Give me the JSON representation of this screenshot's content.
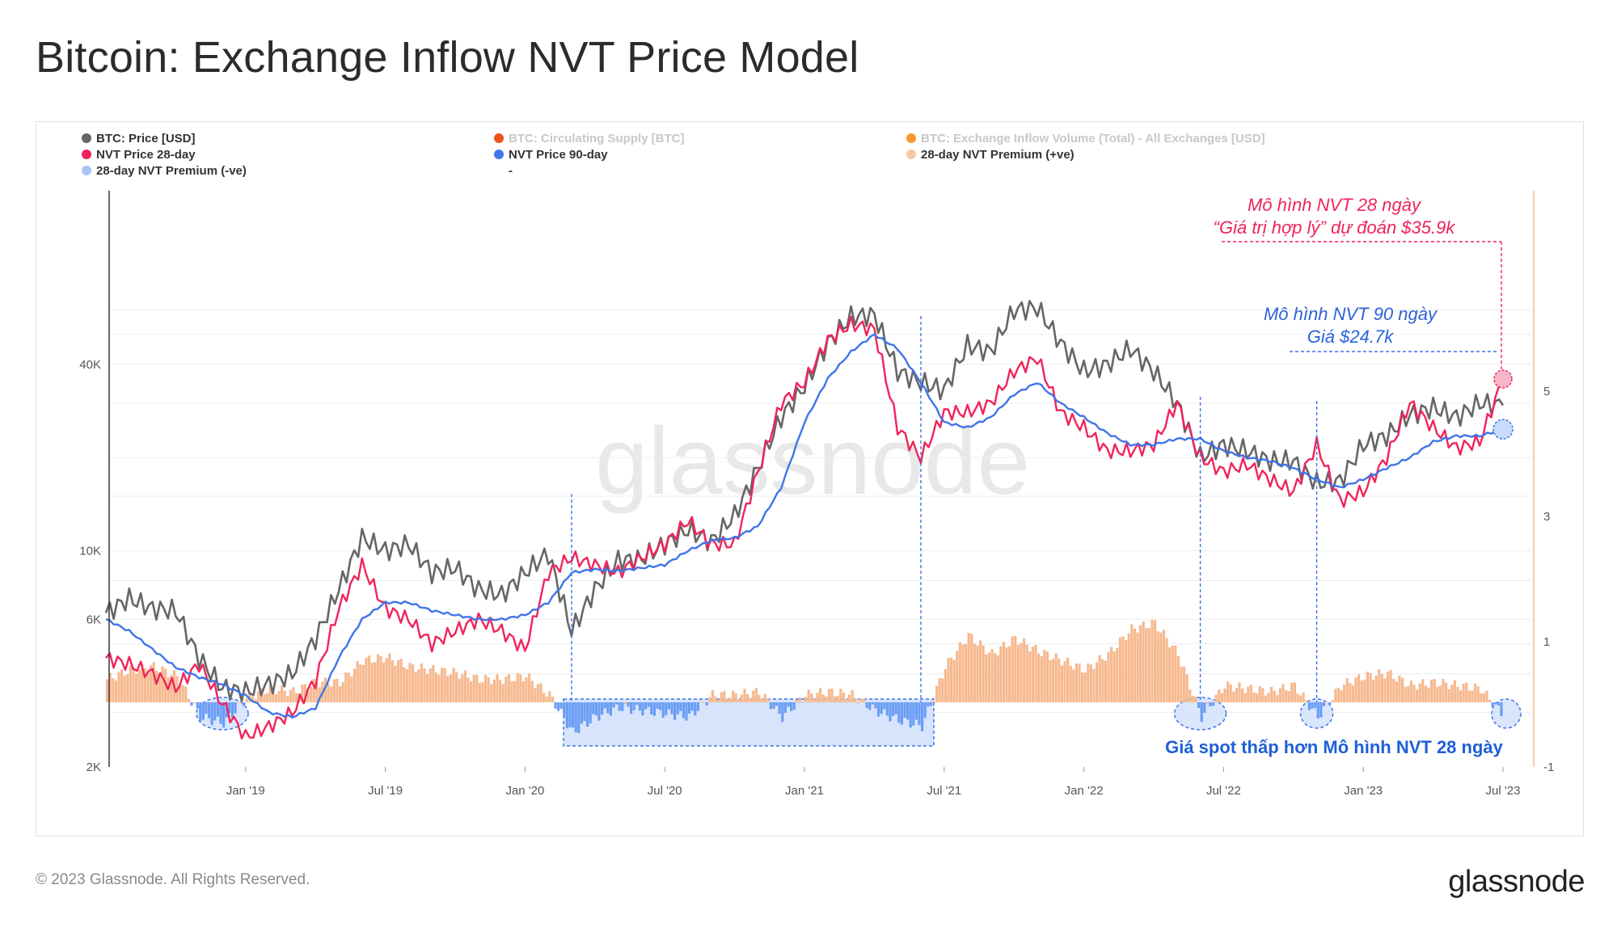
{
  "page": {
    "title": "Bitcoin: Exchange Inflow NVT Price Model",
    "copyright": "© 2023 Glassnode. All Rights Reserved.",
    "brand": "glassnode",
    "watermark": "glassnode"
  },
  "colors": {
    "price": "#666666",
    "nvt28": "#f0245a",
    "nvt90": "#3f74ea",
    "premium_pos": "#f6b98f",
    "premium_neg": "#6b9df5",
    "supply": "#f0501c",
    "inflow": "#f59a2a",
    "neg_highlight": "#c9dbfb",
    "annot_red": "#f0245a",
    "annot_blue": "#2c63d8"
  },
  "legend": [
    {
      "label": "BTC: Price [USD]",
      "color": "#666666",
      "faded": false
    },
    {
      "label": "BTC: Circulating Supply [BTC]",
      "color": "#f0501c",
      "faded": true
    },
    {
      "label": "BTC: Exchange Inflow Volume (Total) - All Exchanges [USD]",
      "color": "#f59a2a",
      "faded": true
    },
    {
      "label": "NVT Price 28-day",
      "color": "#f0245a",
      "faded": false
    },
    {
      "label": "NVT Price 90-day",
      "color": "#3f74ea",
      "faded": false
    },
    {
      "label": "28-day NVT Premium (+ve)",
      "color": "#f6c8a4",
      "faded": false
    },
    {
      "label": "28-day NVT Premium (-ve)",
      "color": "#a8c4f7",
      "faded": false
    },
    {
      "label": "-",
      "color": "",
      "faded": false
    }
  ],
  "annotations": {
    "nvt28_line1": "Mô hình NVT 28 ngày",
    "nvt28_line2": "“Giá trị hợp lý” dự đoán $35.9k",
    "nvt90_line1": "Mô hình NVT 90 ngày",
    "nvt90_line2": "Giá $24.7k",
    "spot_below": "Giá spot thấp hơn Mô hình NVT 28 ngày"
  },
  "chart_data": {
    "type": "line",
    "y_left_scale": "log",
    "y_left_ticks": [
      {
        "value": 2000,
        "label": "2K"
      },
      {
        "value": 6000,
        "label": "6K"
      },
      {
        "value": 10000,
        "label": "10K"
      },
      {
        "value": 40000,
        "label": "40K"
      }
    ],
    "y_right_ticks": [
      {
        "value": -1,
        "label": "-1"
      },
      {
        "value": 1,
        "label": "1"
      },
      {
        "value": 3,
        "label": "3"
      },
      {
        "value": 5,
        "label": "5"
      }
    ],
    "x_ticks": [
      "Jan '19",
      "Jul '19",
      "Jan '20",
      "Jul '20",
      "Jan '21",
      "Jul '21",
      "Jan '22",
      "Jul '22",
      "Jan '23",
      "Jul '23"
    ],
    "x_range": [
      "2018-07",
      "2023-07"
    ],
    "grid": true,
    "series": [
      {
        "name": "BTC: Price [USD]",
        "axis": "left",
        "points": [
          [
            "2018-07",
            6300
          ],
          [
            "2018-08",
            7000
          ],
          [
            "2018-09",
            6500
          ],
          [
            "2018-10",
            6400
          ],
          [
            "2018-11",
            4500
          ],
          [
            "2018-12",
            3600
          ],
          [
            "2019-01",
            3500
          ],
          [
            "2019-02",
            3700
          ],
          [
            "2019-03",
            4000
          ],
          [
            "2019-04",
            5200
          ],
          [
            "2019-05",
            7500
          ],
          [
            "2019-06",
            11000
          ],
          [
            "2019-07",
            10000
          ],
          [
            "2019-08",
            10500
          ],
          [
            "2019-09",
            8500
          ],
          [
            "2019-10",
            8800
          ],
          [
            "2019-11",
            7500
          ],
          [
            "2019-12",
            7200
          ],
          [
            "2020-01",
            8500
          ],
          [
            "2020-02",
            9800
          ],
          [
            "2020-03",
            5500
          ],
          [
            "2020-04",
            7500
          ],
          [
            "2020-05",
            9300
          ],
          [
            "2020-06",
            9400
          ],
          [
            "2020-07",
            10500
          ],
          [
            "2020-08",
            11700
          ],
          [
            "2020-09",
            10700
          ],
          [
            "2020-10",
            13000
          ],
          [
            "2020-11",
            18500
          ],
          [
            "2020-12",
            27000
          ],
          [
            "2021-01",
            34000
          ],
          [
            "2021-02",
            47000
          ],
          [
            "2021-03",
            57000
          ],
          [
            "2021-04",
            58000
          ],
          [
            "2021-05",
            38000
          ],
          [
            "2021-06",
            35000
          ],
          [
            "2021-07",
            33000
          ],
          [
            "2021-08",
            46000
          ],
          [
            "2021-09",
            44000
          ],
          [
            "2021-10",
            60000
          ],
          [
            "2021-11",
            61000
          ],
          [
            "2021-12",
            47000
          ],
          [
            "2022-01",
            38000
          ],
          [
            "2022-02",
            40000
          ],
          [
            "2022-03",
            45000
          ],
          [
            "2022-04",
            38000
          ],
          [
            "2022-05",
            30000
          ],
          [
            "2022-06",
            20000
          ],
          [
            "2022-07",
            22000
          ],
          [
            "2022-08",
            21000
          ],
          [
            "2022-09",
            19500
          ],
          [
            "2022-10",
            19500
          ],
          [
            "2022-11",
            16500
          ],
          [
            "2022-12",
            16800
          ],
          [
            "2023-01",
            22000
          ],
          [
            "2023-02",
            23500
          ],
          [
            "2023-03",
            27500
          ],
          [
            "2023-04",
            29000
          ],
          [
            "2023-05",
            27000
          ],
          [
            "2023-06",
            30000
          ],
          [
            "2023-07",
            29500
          ]
        ]
      },
      {
        "name": "NVT Price 28-day",
        "axis": "left",
        "points": [
          [
            "2018-07",
            4500
          ],
          [
            "2018-08",
            4300
          ],
          [
            "2018-09",
            4000
          ],
          [
            "2018-10",
            3600
          ],
          [
            "2018-11",
            4300
          ],
          [
            "2018-12",
            3200
          ],
          [
            "2019-01",
            2500
          ],
          [
            "2019-02",
            2700
          ],
          [
            "2019-03",
            3000
          ],
          [
            "2019-04",
            3800
          ],
          [
            "2019-05",
            6500
          ],
          [
            "2019-06",
            9000
          ],
          [
            "2019-07",
            6500
          ],
          [
            "2019-08",
            6000
          ],
          [
            "2019-09",
            5000
          ],
          [
            "2019-10",
            5500
          ],
          [
            "2019-11",
            6000
          ],
          [
            "2019-12",
            5500
          ],
          [
            "2020-01",
            4800
          ],
          [
            "2020-02",
            8500
          ],
          [
            "2020-03",
            9500
          ],
          [
            "2020-04",
            9000
          ],
          [
            "2020-05",
            8500
          ],
          [
            "2020-06",
            9500
          ],
          [
            "2020-07",
            10500
          ],
          [
            "2020-08",
            12500
          ],
          [
            "2020-09",
            10500
          ],
          [
            "2020-10",
            10500
          ],
          [
            "2020-11",
            18000
          ],
          [
            "2020-12",
            30000
          ],
          [
            "2021-01",
            35000
          ],
          [
            "2021-02",
            48000
          ],
          [
            "2021-03",
            54000
          ],
          [
            "2021-04",
            52000
          ],
          [
            "2021-05",
            25000
          ],
          [
            "2021-06",
            20000
          ],
          [
            "2021-07",
            28000
          ],
          [
            "2021-08",
            28000
          ],
          [
            "2021-09",
            30000
          ],
          [
            "2021-10",
            38000
          ],
          [
            "2021-11",
            42000
          ],
          [
            "2021-12",
            28000
          ],
          [
            "2022-01",
            25000
          ],
          [
            "2022-02",
            21000
          ],
          [
            "2022-03",
            21000
          ],
          [
            "2022-04",
            22000
          ],
          [
            "2022-05",
            30000
          ],
          [
            "2022-06",
            20000
          ],
          [
            "2022-07",
            18000
          ],
          [
            "2022-08",
            19000
          ],
          [
            "2022-09",
            17000
          ],
          [
            "2022-10",
            15500
          ],
          [
            "2022-11",
            22000
          ],
          [
            "2022-12",
            14500
          ],
          [
            "2023-01",
            15500
          ],
          [
            "2023-02",
            20000
          ],
          [
            "2023-03",
            30000
          ],
          [
            "2023-04",
            25000
          ],
          [
            "2023-05",
            21500
          ],
          [
            "2023-06",
            22500
          ],
          [
            "2023-07",
            35900
          ]
        ]
      },
      {
        "name": "NVT Price 90-day",
        "axis": "left",
        "points": [
          [
            "2018-07",
            6000
          ],
          [
            "2018-08",
            5500
          ],
          [
            "2018-09",
            4800
          ],
          [
            "2018-10",
            4200
          ],
          [
            "2018-11",
            3900
          ],
          [
            "2018-12",
            3700
          ],
          [
            "2019-01",
            3400
          ],
          [
            "2019-02",
            3000
          ],
          [
            "2019-03",
            2900
          ],
          [
            "2019-04",
            3100
          ],
          [
            "2019-05",
            4500
          ],
          [
            "2019-06",
            6000
          ],
          [
            "2019-07",
            6800
          ],
          [
            "2019-08",
            6800
          ],
          [
            "2019-09",
            6400
          ],
          [
            "2019-10",
            6200
          ],
          [
            "2019-11",
            6000
          ],
          [
            "2019-12",
            6000
          ],
          [
            "2020-01",
            6200
          ],
          [
            "2020-02",
            6800
          ],
          [
            "2020-03",
            8500
          ],
          [
            "2020-04",
            8700
          ],
          [
            "2020-05",
            8600
          ],
          [
            "2020-06",
            8800
          ],
          [
            "2020-07",
            9000
          ],
          [
            "2020-08",
            10000
          ],
          [
            "2020-09",
            10800
          ],
          [
            "2020-10",
            11000
          ],
          [
            "2020-11",
            12000
          ],
          [
            "2020-12",
            16000
          ],
          [
            "2021-01",
            26000
          ],
          [
            "2021-02",
            36000
          ],
          [
            "2021-03",
            44000
          ],
          [
            "2021-04",
            50000
          ],
          [
            "2021-05",
            45000
          ],
          [
            "2021-06",
            35000
          ],
          [
            "2021-07",
            26000
          ],
          [
            "2021-08",
            25000
          ],
          [
            "2021-09",
            27000
          ],
          [
            "2021-10",
            32000
          ],
          [
            "2021-11",
            35000
          ],
          [
            "2021-12",
            30000
          ],
          [
            "2022-01",
            27000
          ],
          [
            "2022-02",
            24000
          ],
          [
            "2022-03",
            22000
          ],
          [
            "2022-04",
            22000
          ],
          [
            "2022-05",
            23000
          ],
          [
            "2022-06",
            23000
          ],
          [
            "2022-07",
            21000
          ],
          [
            "2022-08",
            20000
          ],
          [
            "2022-09",
            19500
          ],
          [
            "2022-10",
            18500
          ],
          [
            "2022-11",
            17000
          ],
          [
            "2022-12",
            16000
          ],
          [
            "2023-01",
            17000
          ],
          [
            "2023-02",
            18500
          ],
          [
            "2023-03",
            20000
          ],
          [
            "2023-04",
            22500
          ],
          [
            "2023-05",
            23500
          ],
          [
            "2023-06",
            23500
          ],
          [
            "2023-07",
            24700
          ]
        ]
      },
      {
        "name": "28-day NVT Premium",
        "axis": "right",
        "type": "bar",
        "points": [
          [
            "2018-07",
            0.4
          ],
          [
            "2018-08",
            0.55
          ],
          [
            "2018-09",
            0.6
          ],
          [
            "2018-10",
            0.45
          ],
          [
            "2018-11",
            -0.2
          ],
          [
            "2018-12",
            -0.3
          ],
          [
            "2019-01",
            0.1
          ],
          [
            "2019-02",
            0.25
          ],
          [
            "2019-03",
            0.2
          ],
          [
            "2019-04",
            0.35
          ],
          [
            "2019-05",
            0.35
          ],
          [
            "2019-06",
            0.7
          ],
          [
            "2019-07",
            0.75
          ],
          [
            "2019-08",
            0.6
          ],
          [
            "2019-09",
            0.55
          ],
          [
            "2019-10",
            0.5
          ],
          [
            "2019-11",
            0.4
          ],
          [
            "2019-12",
            0.4
          ],
          [
            "2020-01",
            0.45
          ],
          [
            "2020-02",
            0.15
          ],
          [
            "2020-03",
            -0.45
          ],
          [
            "2020-04",
            -0.2
          ],
          [
            "2020-05",
            -0.05
          ],
          [
            "2020-06",
            -0.1
          ],
          [
            "2020-07",
            -0.15
          ],
          [
            "2020-08",
            -0.2
          ],
          [
            "2020-09",
            0.15
          ],
          [
            "2020-10",
            0.15
          ],
          [
            "2020-11",
            0.2
          ],
          [
            "2020-12",
            -0.2
          ],
          [
            "2021-01",
            0.15
          ],
          [
            "2021-02",
            0.2
          ],
          [
            "2021-03",
            0.15
          ],
          [
            "2021-04",
            -0.1
          ],
          [
            "2021-05",
            -0.25
          ],
          [
            "2021-06",
            -0.35
          ],
          [
            "2021-07",
            0.6
          ],
          [
            "2021-08",
            1.1
          ],
          [
            "2021-09",
            0.8
          ],
          [
            "2021-10",
            1.05
          ],
          [
            "2021-11",
            0.85
          ],
          [
            "2021-12",
            0.7
          ],
          [
            "2022-01",
            0.55
          ],
          [
            "2022-02",
            0.8
          ],
          [
            "2022-03",
            1.2
          ],
          [
            "2022-04",
            1.3
          ],
          [
            "2022-05",
            0.8
          ],
          [
            "2022-06",
            -0.2
          ],
          [
            "2022-07",
            0.3
          ],
          [
            "2022-08",
            0.25
          ],
          [
            "2022-09",
            0.2
          ],
          [
            "2022-10",
            0.3
          ],
          [
            "2022-11",
            -0.2
          ],
          [
            "2022-12",
            0.3
          ],
          [
            "2023-01",
            0.45
          ],
          [
            "2023-02",
            0.5
          ],
          [
            "2023-03",
            0.3
          ],
          [
            "2023-04",
            0.35
          ],
          [
            "2023-05",
            0.3
          ],
          [
            "2023-06",
            0.25
          ],
          [
            "2023-07",
            -0.2
          ]
        ]
      }
    ]
  }
}
